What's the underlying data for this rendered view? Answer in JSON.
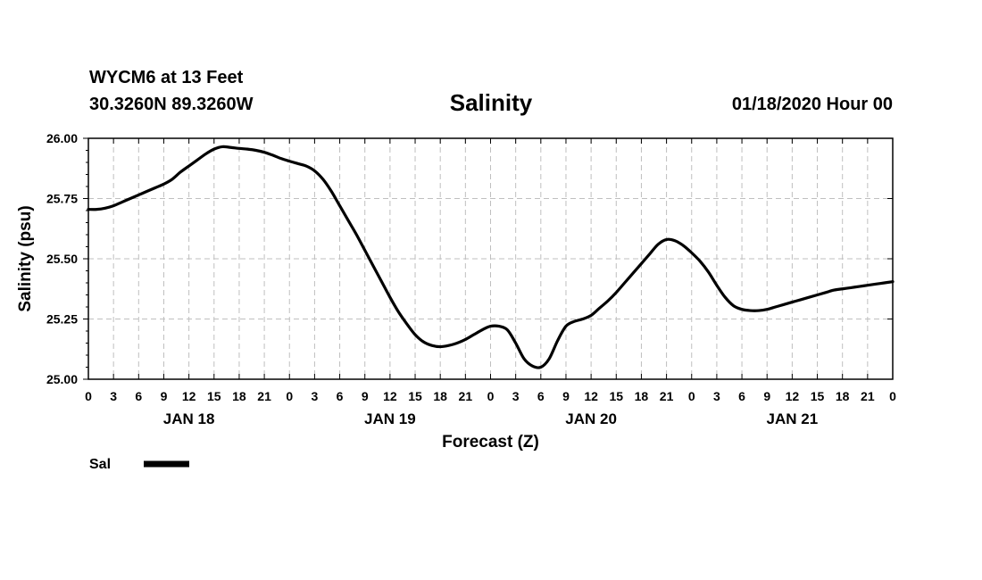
{
  "header": {
    "station": "WYCM6 at 13 Feet",
    "coords": "30.3260N 89.3260W",
    "title": "Salinity",
    "issued": "01/18/2020 Hour 00"
  },
  "chart_data": {
    "type": "line",
    "title": "Salinity",
    "xlabel": "Forecast (Z)",
    "ylabel": "Salinity (psu)",
    "ylim": [
      25.0,
      26.0
    ],
    "yticks": [
      "25.00",
      "25.25",
      "25.50",
      "25.75",
      "26.00"
    ],
    "xlim_hours": [
      0,
      96
    ],
    "xtick_labels": [
      "0",
      "3",
      "6",
      "9",
      "12",
      "15",
      "18",
      "21",
      "0",
      "3",
      "6",
      "9",
      "12",
      "15",
      "18",
      "21",
      "0",
      "3",
      "6",
      "9",
      "12",
      "15",
      "18",
      "21",
      "0",
      "3",
      "6",
      "9",
      "12",
      "15",
      "18",
      "21",
      "0"
    ],
    "day_labels": [
      {
        "label": "JAN 18",
        "hour": 12
      },
      {
        "label": "JAN 19",
        "hour": 36
      },
      {
        "label": "JAN 20",
        "hour": 60
      },
      {
        "label": "JAN 21",
        "hour": 84
      }
    ],
    "grid": true,
    "legend_position": "bottom-left",
    "series": [
      {
        "name": "Sal",
        "color": "#000000",
        "x": [
          0,
          1,
          2,
          3,
          4,
          5,
          6,
          7,
          8,
          9,
          10,
          11,
          12,
          13,
          14,
          15,
          16,
          17,
          18,
          19,
          20,
          21,
          22,
          23,
          24,
          25,
          26,
          27,
          28,
          29,
          30,
          31,
          32,
          33,
          34,
          35,
          36,
          37,
          38,
          39,
          40,
          41,
          42,
          43,
          44,
          45,
          46,
          47,
          48,
          49,
          50,
          51,
          52,
          53,
          54,
          55,
          56,
          57,
          58,
          59,
          60,
          61,
          62,
          63,
          64,
          65,
          66,
          67,
          68,
          69,
          70,
          71,
          72,
          73,
          74,
          75,
          76,
          77,
          78,
          79,
          80,
          81,
          82,
          83,
          84,
          85,
          86,
          87,
          88,
          89,
          90,
          91,
          92,
          93,
          94,
          95,
          96
        ],
        "values": [
          25.705,
          25.705,
          25.71,
          25.72,
          25.735,
          25.75,
          25.765,
          25.78,
          25.795,
          25.81,
          25.83,
          25.86,
          25.885,
          25.91,
          25.935,
          25.955,
          25.965,
          25.962,
          25.958,
          25.955,
          25.95,
          25.942,
          25.93,
          25.916,
          25.905,
          25.895,
          25.885,
          25.865,
          25.83,
          25.78,
          25.72,
          25.66,
          25.6,
          25.535,
          25.47,
          25.405,
          25.34,
          25.28,
          25.23,
          25.185,
          25.155,
          25.14,
          25.135,
          25.14,
          25.15,
          25.165,
          25.185,
          25.205,
          25.22,
          25.22,
          25.205,
          25.15,
          25.085,
          25.055,
          25.05,
          25.085,
          25.16,
          25.22,
          25.24,
          25.25,
          25.265,
          25.295,
          25.325,
          25.36,
          25.4,
          25.44,
          25.48,
          25.52,
          25.56,
          25.58,
          25.575,
          25.555,
          25.525,
          25.49,
          25.445,
          25.39,
          25.34,
          25.305,
          25.29,
          25.285,
          25.285,
          25.29,
          25.3,
          25.31,
          25.32,
          25.33,
          25.34,
          25.35,
          25.36,
          25.37,
          25.375,
          25.38,
          25.385,
          25.39,
          25.395,
          25.4,
          25.405
        ]
      }
    ]
  }
}
